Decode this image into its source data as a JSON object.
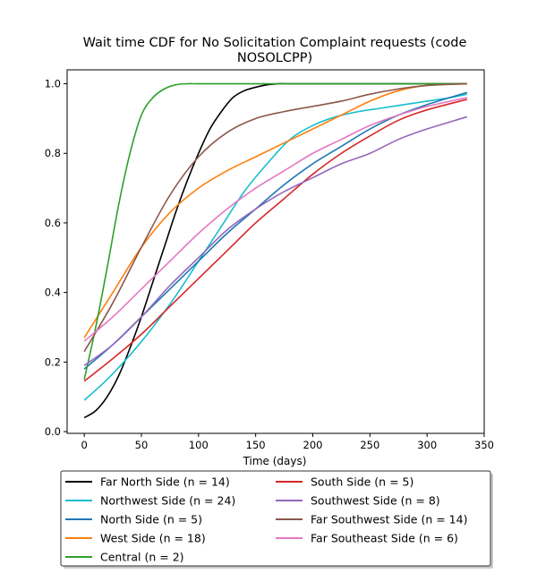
{
  "chart_data": {
    "type": "line",
    "title_line1": "Wait time CDF for No Solicitation Complaint  requests (code",
    "title_line2": "NOSOLCPP)",
    "xlabel": "Time (days)",
    "ylabel": "",
    "xlim": [
      -15,
      350
    ],
    "ylim": [
      -0.005,
      1.04
    ],
    "xticks": [
      0,
      50,
      100,
      150,
      200,
      250,
      300,
      350
    ],
    "yticks": [
      0.0,
      0.2,
      0.4,
      0.6,
      0.8,
      1.0
    ],
    "grid": false,
    "legend_position": "below",
    "series": [
      {
        "name": "Far North Side (n = 14)",
        "color": "#000000",
        "x": [
          0,
          10,
          20,
          30,
          40,
          50,
          60,
          70,
          80,
          90,
          100,
          110,
          120,
          130,
          140,
          150,
          160,
          170,
          180,
          200,
          250,
          300,
          335
        ],
        "y": [
          0.04,
          0.06,
          0.1,
          0.16,
          0.24,
          0.33,
          0.43,
          0.53,
          0.63,
          0.72,
          0.8,
          0.87,
          0.92,
          0.96,
          0.98,
          0.99,
          0.997,
          1.0,
          1.0,
          1.0,
          1.0,
          1.0,
          1.0
        ]
      },
      {
        "name": "Northwest Side (n = 24)",
        "color": "#17becf",
        "x": [
          0,
          20,
          40,
          60,
          80,
          100,
          120,
          140,
          160,
          180,
          200,
          220,
          240,
          260,
          280,
          300,
          320,
          335
        ],
        "y": [
          0.09,
          0.15,
          0.22,
          0.3,
          0.39,
          0.49,
          0.59,
          0.69,
          0.77,
          0.84,
          0.88,
          0.905,
          0.92,
          0.93,
          0.94,
          0.95,
          0.96,
          0.97
        ]
      },
      {
        "name": "North Side (n = 5)",
        "color": "#1f77b4",
        "x": [
          0,
          25,
          50,
          75,
          100,
          125,
          150,
          175,
          200,
          225,
          250,
          275,
          300,
          335
        ],
        "y": [
          0.18,
          0.25,
          0.33,
          0.41,
          0.49,
          0.57,
          0.64,
          0.71,
          0.77,
          0.82,
          0.87,
          0.91,
          0.94,
          0.975
        ]
      },
      {
        "name": "West Side (n = 18)",
        "color": "#ff7f0e",
        "x": [
          0,
          25,
          50,
          75,
          100,
          125,
          150,
          175,
          200,
          225,
          250,
          275,
          300,
          335
        ],
        "y": [
          0.27,
          0.4,
          0.53,
          0.63,
          0.7,
          0.75,
          0.79,
          0.83,
          0.87,
          0.91,
          0.95,
          0.98,
          0.995,
          1.0
        ]
      },
      {
        "name": "Central (n = 2)",
        "color": "#2ca02c",
        "x": [
          0,
          10,
          20,
          30,
          40,
          50,
          60,
          70,
          80,
          90,
          100,
          120,
          150,
          200,
          250,
          300,
          335
        ],
        "y": [
          0.15,
          0.3,
          0.47,
          0.65,
          0.8,
          0.91,
          0.96,
          0.985,
          0.997,
          1.0,
          1.0,
          1.0,
          1.0,
          1.0,
          1.0,
          1.0,
          1.0
        ]
      },
      {
        "name": "South Side (n = 5)",
        "color": "#d62728",
        "x": [
          0,
          25,
          50,
          75,
          100,
          125,
          150,
          175,
          200,
          225,
          250,
          275,
          300,
          335
        ],
        "y": [
          0.145,
          0.21,
          0.28,
          0.36,
          0.44,
          0.52,
          0.6,
          0.67,
          0.74,
          0.8,
          0.85,
          0.895,
          0.925,
          0.955
        ]
      },
      {
        "name": "Southwest Side (n = 8)",
        "color": "#9467bd",
        "x": [
          0,
          25,
          50,
          75,
          100,
          125,
          150,
          175,
          200,
          225,
          250,
          275,
          300,
          335
        ],
        "y": [
          0.19,
          0.25,
          0.33,
          0.42,
          0.5,
          0.58,
          0.64,
          0.69,
          0.73,
          0.77,
          0.8,
          0.84,
          0.87,
          0.905
        ]
      },
      {
        "name": "Far Southwest Side (n = 14)",
        "color": "#8c564b",
        "x": [
          0,
          25,
          50,
          75,
          100,
          125,
          150,
          175,
          200,
          225,
          250,
          275,
          300,
          335
        ],
        "y": [
          0.23,
          0.37,
          0.53,
          0.68,
          0.79,
          0.86,
          0.9,
          0.92,
          0.935,
          0.95,
          0.97,
          0.985,
          0.995,
          1.0
        ]
      },
      {
        "name": "Far Southeast Side (n = 6)",
        "color": "#e377c2",
        "x": [
          0,
          25,
          50,
          75,
          100,
          125,
          150,
          175,
          200,
          225,
          250,
          275,
          300,
          335
        ],
        "y": [
          0.26,
          0.33,
          0.41,
          0.49,
          0.57,
          0.64,
          0.7,
          0.75,
          0.8,
          0.84,
          0.88,
          0.91,
          0.935,
          0.96
        ]
      }
    ],
    "legend_order": [
      0,
      1,
      2,
      3,
      4,
      5,
      6,
      7,
      8
    ]
  }
}
